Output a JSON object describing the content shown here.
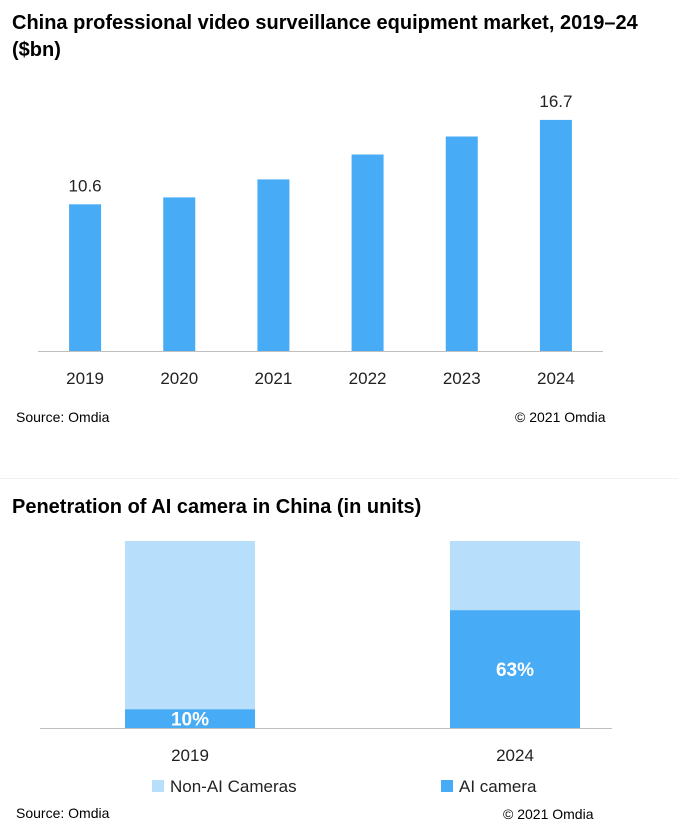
{
  "chart_data": [
    {
      "type": "bar",
      "title": "China professional video surveillance equipment market, 2019–24 ($bn)",
      "categories": [
        "2019",
        "2020",
        "2021",
        "2022",
        "2023",
        "2024"
      ],
      "values": [
        10.6,
        11.1,
        12.4,
        14.2,
        15.5,
        16.7
      ],
      "data_labels": {
        "2019": "10.6",
        "2024": "16.7"
      },
      "ylim": [
        0,
        18.5
      ],
      "grid": false,
      "color": "#47abf5",
      "source": "Source: Omdia",
      "copyright": "© 2021 Omdia"
    },
    {
      "type": "bar",
      "stacked": true,
      "title": "Penetration of AI camera in China (in units)",
      "categories": [
        "2019",
        "2024"
      ],
      "series": [
        {
          "name": "AI camera",
          "values": [
            10,
            63
          ],
          "labels": [
            "10%",
            "63%"
          ],
          "color": "#47abf5"
        },
        {
          "name": "Non-AI Cameras",
          "values": [
            90,
            37
          ],
          "color": "#b7dffb"
        }
      ],
      "ylim": [
        0,
        100
      ],
      "legend": [
        "Non-AI Cameras",
        "AI camera"
      ],
      "legend_position": "bottom",
      "source": "Source: Omdia",
      "copyright": "© 2021 Omdia"
    }
  ]
}
